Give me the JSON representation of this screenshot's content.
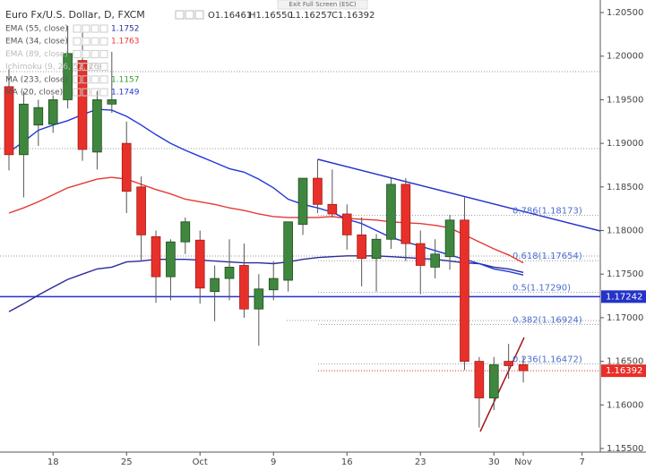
{
  "chart_data": {
    "type": "candlestick",
    "header": {
      "symbol": "Euro Fx/U.S. Dollar, D, FXCM",
      "ohlc": [
        "O1.16461",
        "H1.16550",
        "L1.16257",
        "C1.16392"
      ]
    },
    "tooltip": "Exit Full Screen (ESC)",
    "up_color": "#3f873f",
    "down_color": "#e8302a",
    "open": [
      1.1965,
      1.1887,
      1.1921,
      1.1922,
      1.195,
      1.1995,
      1.189,
      1.1945,
      1.19,
      1.185,
      1.1793,
      1.1747,
      1.1787,
      1.1789,
      1.173,
      1.1745,
      1.176,
      1.171,
      1.1732,
      1.1743,
      1.1807,
      1.186,
      1.183,
      1.1819,
      1.1795,
      1.1768,
      1.179,
      1.1853,
      1.1785,
      1.1758,
      1.177,
      1.1812,
      1.165,
      1.1608,
      1.165,
      1.16461
    ],
    "high": [
      1.1985,
      1.196,
      1.195,
      1.1955,
      1.2035,
      1.2035,
      1.196,
      1.2005,
      1.1925,
      1.1862,
      1.18,
      1.179,
      1.1815,
      1.18,
      1.176,
      1.179,
      1.1785,
      1.175,
      1.1765,
      1.181,
      1.186,
      1.1882,
      1.187,
      1.183,
      1.1815,
      1.1796,
      1.186,
      1.186,
      1.18,
      1.179,
      1.1818,
      1.1838,
      1.1655,
      1.1655,
      1.167,
      1.1655
    ],
    "low": [
      1.1869,
      1.1838,
      1.1897,
      1.1912,
      1.194,
      1.188,
      1.187,
      1.1935,
      1.182,
      1.1765,
      1.1717,
      1.172,
      1.1773,
      1.1716,
      1.1696,
      1.172,
      1.17,
      1.1668,
      1.172,
      1.173,
      1.1795,
      1.182,
      1.1815,
      1.1778,
      1.1736,
      1.173,
      1.1779,
      1.1765,
      1.1727,
      1.1745,
      1.1755,
      1.164,
      1.1574,
      1.1594,
      1.163,
      1.16257
    ],
    "close": [
      1.1887,
      1.1945,
      1.1941,
      1.195,
      1.2003,
      1.1893,
      1.195,
      1.195,
      1.1845,
      1.1795,
      1.1747,
      1.1787,
      1.181,
      1.1734,
      1.1745,
      1.1758,
      1.171,
      1.1733,
      1.1745,
      1.181,
      1.186,
      1.183,
      1.1819,
      1.1795,
      1.1768,
      1.179,
      1.1853,
      1.1785,
      1.176,
      1.1773,
      1.1812,
      1.165,
      1.1608,
      1.1646,
      1.1645,
      1.16392
    ],
    "series": [
      {
        "name": "EMA (55, close)",
        "color": "#2a2a9a",
        "last_label": "1.1752",
        "values": [
          1.1707,
          1.1716,
          1.1726,
          1.1735,
          1.1744,
          1.175,
          1.1756,
          1.1758,
          1.1764,
          1.1765,
          1.1767,
          1.1767,
          1.1767,
          1.1766,
          1.1765,
          1.1764,
          1.1763,
          1.1763,
          1.1762,
          1.1764,
          1.1767,
          1.1769,
          1.177,
          1.1771,
          1.1771,
          1.1771,
          1.177,
          1.1769,
          1.1768,
          1.1767,
          1.1765,
          1.1763,
          1.1762,
          1.1758,
          1.1756,
          1.1752
        ]
      },
      {
        "name": "EMA (34, close)",
        "color": "#e53935",
        "last_label": "1.1763",
        "values": [
          1.182,
          1.1826,
          1.1833,
          1.1841,
          1.1849,
          1.1854,
          1.1859,
          1.1861,
          1.1859,
          1.1853,
          1.1847,
          1.1842,
          1.1836,
          1.1833,
          1.183,
          1.1826,
          1.1823,
          1.1819,
          1.1816,
          1.1815,
          1.1815,
          1.1815,
          1.1816,
          1.1814,
          1.1813,
          1.1812,
          1.181,
          1.1809,
          1.1808,
          1.1806,
          1.1803,
          1.1795,
          1.1787,
          1.1779,
          1.1772,
          1.1763
        ]
      },
      {
        "name": "EMA (89, close)",
        "hidden": true
      },
      {
        "name": "Ichimoku (9, 26, 52, 26)",
        "hidden": true
      },
      {
        "name": "MA (233, close)",
        "color": "#2e9e2e",
        "last_label": "1.1157"
      },
      {
        "name": "MA (20, close)",
        "color": "#2038d8",
        "last_label": "1.1749",
        "values": [
          1.189,
          1.1902,
          1.1915,
          1.1921,
          1.1926,
          1.1933,
          1.1939,
          1.1938,
          1.1931,
          1.1921,
          1.191,
          1.19,
          1.1892,
          1.1885,
          1.1878,
          1.1871,
          1.1867,
          1.1859,
          1.1849,
          1.1836,
          1.183,
          1.1826,
          1.1821,
          1.1813,
          1.1808,
          1.18,
          1.1792,
          1.1787,
          1.1782,
          1.1777,
          1.1772,
          1.1767,
          1.1762,
          1.1756,
          1.1753,
          1.1749
        ]
      }
    ],
    "fib_levels": [
      {
        "value": 1.18173,
        "label": "0.786(1.18173)"
      },
      {
        "value": 1.17654,
        "label": "0.618(1.17654)"
      },
      {
        "value": 1.1729,
        "label": "0.5(1.17290)"
      },
      {
        "value": 1.16924,
        "label": "0.382(1.16924)"
      },
      {
        "value": 1.16472,
        "label": "0.236(1.16472)"
      }
    ],
    "hline": {
      "value": 1.17242,
      "label": "1.17242",
      "color": "#2433c8"
    },
    "last_price_label": "1.16392",
    "ylim": [
      1.15459,
      1.20644
    ],
    "yticks": [
      {
        "value": 1.205,
        "label": "1.20500"
      },
      {
        "value": 1.2,
        "label": "1.20000"
      },
      {
        "value": 1.195,
        "label": "1.19500"
      },
      {
        "value": 1.19,
        "label": "1.19000"
      },
      {
        "value": 1.185,
        "label": "1.18500"
      },
      {
        "value": 1.18,
        "label": "1.18000"
      },
      {
        "value": 1.175,
        "label": "1.17500"
      },
      {
        "value": 1.17,
        "label": "1.17000"
      },
      {
        "value": 1.165,
        "label": "1.16500"
      },
      {
        "value": 1.16,
        "label": "1.16000"
      },
      {
        "value": 1.155,
        "label": "1.15500"
      }
    ],
    "xlim": [
      -0.61,
      40.24
    ],
    "xticks": [
      {
        "value": 3,
        "label": "18"
      },
      {
        "value": 8,
        "label": "25"
      },
      {
        "value": 13,
        "label": "Oct"
      },
      {
        "value": 18,
        "label": "9"
      },
      {
        "value": 23,
        "label": "16"
      },
      {
        "value": 28,
        "label": "23"
      },
      {
        "value": 33,
        "label": "30"
      },
      {
        "value": 35,
        "label": "Nov"
      },
      {
        "value": 39,
        "label": "7"
      }
    ]
  }
}
